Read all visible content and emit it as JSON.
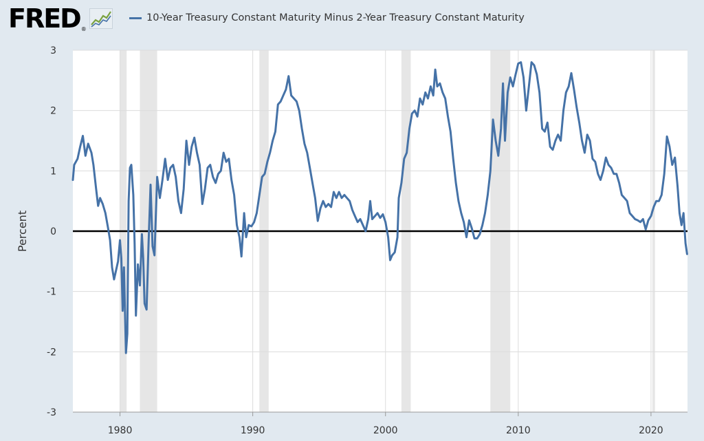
{
  "header": {
    "logo_text": "FRED",
    "logo_reg": "®",
    "logo_icon": "sparkline-chart-icon"
  },
  "legend": {
    "label": "10-Year Treasury Constant Maturity Minus 2-Year Treasury Constant Maturity",
    "color": "#4572a7"
  },
  "chart_data": {
    "type": "line",
    "title": "",
    "xlabel": "",
    "ylabel": "Percent",
    "xlim": [
      1976.45,
      2022.75
    ],
    "ylim": [
      -3,
      3
    ],
    "x_ticks": [
      1980,
      1990,
      2000,
      2010,
      2020
    ],
    "x_tick_labels": [
      "1980",
      "1990",
      "2000",
      "2010",
      "2020"
    ],
    "y_ticks": [
      -3,
      -2,
      -1,
      0,
      1,
      2,
      3
    ],
    "y_tick_labels": [
      "-3",
      "-2",
      "-1",
      "0",
      "1",
      "2",
      "3"
    ],
    "grid": true,
    "zero_line": true,
    "legend_position": "top",
    "recessions": [
      [
        1980.0,
        1980.5
      ],
      [
        1981.5,
        1982.8
      ],
      [
        1990.5,
        1991.2
      ],
      [
        2001.2,
        2001.9
      ],
      [
        2007.9,
        2009.4
      ],
      [
        2020.1,
        2020.3
      ]
    ],
    "series": [
      {
        "name": "10-Year Treasury Constant Maturity Minus 2-Year Treasury Constant Maturity",
        "color": "#4572a7",
        "points": [
          [
            1976.45,
            0.85
          ],
          [
            1976.55,
            1.1
          ],
          [
            1976.8,
            1.2
          ],
          [
            1977.0,
            1.4
          ],
          [
            1977.2,
            1.58
          ],
          [
            1977.4,
            1.25
          ],
          [
            1977.6,
            1.45
          ],
          [
            1977.85,
            1.3
          ],
          [
            1978.0,
            1.1
          ],
          [
            1978.2,
            0.7
          ],
          [
            1978.35,
            0.42
          ],
          [
            1978.5,
            0.55
          ],
          [
            1978.7,
            0.45
          ],
          [
            1978.9,
            0.3
          ],
          [
            1979.1,
            0.05
          ],
          [
            1979.25,
            -0.15
          ],
          [
            1979.4,
            -0.6
          ],
          [
            1979.55,
            -0.8
          ],
          [
            1979.7,
            -0.65
          ],
          [
            1979.85,
            -0.5
          ],
          [
            1980.0,
            -0.15
          ],
          [
            1980.1,
            -0.45
          ],
          [
            1980.2,
            -1.32
          ],
          [
            1980.3,
            -0.6
          ],
          [
            1980.45,
            -2.02
          ],
          [
            1980.55,
            -1.7
          ],
          [
            1980.65,
            0.5
          ],
          [
            1980.75,
            1.05
          ],
          [
            1980.85,
            1.1
          ],
          [
            1981.0,
            0.6
          ],
          [
            1981.1,
            -0.2
          ],
          [
            1981.2,
            -1.4
          ],
          [
            1981.35,
            -0.55
          ],
          [
            1981.5,
            -0.9
          ],
          [
            1981.65,
            -0.05
          ],
          [
            1981.75,
            -0.45
          ],
          [
            1981.85,
            -1.2
          ],
          [
            1982.0,
            -1.3
          ],
          [
            1982.15,
            -0.2
          ],
          [
            1982.3,
            0.77
          ],
          [
            1982.45,
            -0.25
          ],
          [
            1982.6,
            -0.4
          ],
          [
            1982.8,
            0.9
          ],
          [
            1983.0,
            0.55
          ],
          [
            1983.2,
            0.85
          ],
          [
            1983.4,
            1.2
          ],
          [
            1983.6,
            0.85
          ],
          [
            1983.8,
            1.05
          ],
          [
            1984.0,
            1.1
          ],
          [
            1984.2,
            0.9
          ],
          [
            1984.4,
            0.5
          ],
          [
            1984.6,
            0.3
          ],
          [
            1984.8,
            0.7
          ],
          [
            1985.0,
            1.5
          ],
          [
            1985.2,
            1.1
          ],
          [
            1985.4,
            1.4
          ],
          [
            1985.6,
            1.55
          ],
          [
            1985.8,
            1.3
          ],
          [
            1986.0,
            1.1
          ],
          [
            1986.2,
            0.45
          ],
          [
            1986.4,
            0.7
          ],
          [
            1986.6,
            1.05
          ],
          [
            1986.8,
            1.1
          ],
          [
            1987.0,
            0.9
          ],
          [
            1987.2,
            0.8
          ],
          [
            1987.4,
            0.95
          ],
          [
            1987.6,
            1.0
          ],
          [
            1987.8,
            1.3
          ],
          [
            1988.0,
            1.15
          ],
          [
            1988.2,
            1.2
          ],
          [
            1988.4,
            0.85
          ],
          [
            1988.6,
            0.6
          ],
          [
            1988.8,
            0.1
          ],
          [
            1989.0,
            -0.1
          ],
          [
            1989.15,
            -0.42
          ],
          [
            1989.35,
            0.3
          ],
          [
            1989.5,
            -0.1
          ],
          [
            1989.7,
            0.1
          ],
          [
            1989.9,
            0.08
          ],
          [
            1990.1,
            0.15
          ],
          [
            1990.3,
            0.3
          ],
          [
            1990.5,
            0.6
          ],
          [
            1990.7,
            0.9
          ],
          [
            1990.9,
            0.95
          ],
          [
            1991.1,
            1.15
          ],
          [
            1991.3,
            1.3
          ],
          [
            1991.5,
            1.5
          ],
          [
            1991.7,
            1.65
          ],
          [
            1991.9,
            2.1
          ],
          [
            1992.1,
            2.15
          ],
          [
            1992.3,
            2.25
          ],
          [
            1992.5,
            2.35
          ],
          [
            1992.7,
            2.57
          ],
          [
            1992.9,
            2.25
          ],
          [
            1993.1,
            2.2
          ],
          [
            1993.3,
            2.15
          ],
          [
            1993.5,
            2.0
          ],
          [
            1993.7,
            1.7
          ],
          [
            1993.9,
            1.45
          ],
          [
            1994.1,
            1.3
          ],
          [
            1994.3,
            1.05
          ],
          [
            1994.5,
            0.8
          ],
          [
            1994.7,
            0.55
          ],
          [
            1994.9,
            0.17
          ],
          [
            1995.1,
            0.38
          ],
          [
            1995.3,
            0.5
          ],
          [
            1995.5,
            0.4
          ],
          [
            1995.7,
            0.45
          ],
          [
            1995.9,
            0.4
          ],
          [
            1996.1,
            0.65
          ],
          [
            1996.3,
            0.55
          ],
          [
            1996.5,
            0.65
          ],
          [
            1996.7,
            0.55
          ],
          [
            1996.9,
            0.6
          ],
          [
            1997.1,
            0.55
          ],
          [
            1997.3,
            0.5
          ],
          [
            1997.5,
            0.35
          ],
          [
            1997.7,
            0.25
          ],
          [
            1997.9,
            0.15
          ],
          [
            1998.1,
            0.2
          ],
          [
            1998.3,
            0.1
          ],
          [
            1998.5,
            0.0
          ],
          [
            1998.7,
            0.2
          ],
          [
            1998.85,
            0.5
          ],
          [
            1999.0,
            0.2
          ],
          [
            1999.2,
            0.25
          ],
          [
            1999.4,
            0.3
          ],
          [
            1999.6,
            0.22
          ],
          [
            1999.8,
            0.28
          ],
          [
            2000.0,
            0.15
          ],
          [
            2000.2,
            -0.1
          ],
          [
            2000.35,
            -0.48
          ],
          [
            2000.5,
            -0.4
          ],
          [
            2000.7,
            -0.35
          ],
          [
            2000.9,
            -0.1
          ],
          [
            2001.0,
            0.55
          ],
          [
            2001.2,
            0.8
          ],
          [
            2001.4,
            1.2
          ],
          [
            2001.6,
            1.3
          ],
          [
            2001.8,
            1.7
          ],
          [
            2002.0,
            1.95
          ],
          [
            2002.2,
            2.0
          ],
          [
            2002.4,
            1.9
          ],
          [
            2002.6,
            2.2
          ],
          [
            2002.8,
            2.1
          ],
          [
            2003.0,
            2.3
          ],
          [
            2003.2,
            2.2
          ],
          [
            2003.4,
            2.4
          ],
          [
            2003.6,
            2.25
          ],
          [
            2003.75,
            2.68
          ],
          [
            2003.9,
            2.4
          ],
          [
            2004.1,
            2.45
          ],
          [
            2004.3,
            2.3
          ],
          [
            2004.5,
            2.2
          ],
          [
            2004.7,
            1.9
          ],
          [
            2004.9,
            1.65
          ],
          [
            2005.1,
            1.2
          ],
          [
            2005.3,
            0.8
          ],
          [
            2005.5,
            0.5
          ],
          [
            2005.7,
            0.3
          ],
          [
            2005.9,
            0.15
          ],
          [
            2006.1,
            -0.1
          ],
          [
            2006.3,
            0.18
          ],
          [
            2006.5,
            0.05
          ],
          [
            2006.7,
            -0.12
          ],
          [
            2006.9,
            -0.12
          ],
          [
            2007.1,
            -0.05
          ],
          [
            2007.3,
            0.1
          ],
          [
            2007.5,
            0.3
          ],
          [
            2007.7,
            0.6
          ],
          [
            2007.9,
            1.0
          ],
          [
            2008.1,
            1.85
          ],
          [
            2008.3,
            1.5
          ],
          [
            2008.5,
            1.25
          ],
          [
            2008.7,
            1.7
          ],
          [
            2008.85,
            2.45
          ],
          [
            2009.0,
            1.5
          ],
          [
            2009.2,
            2.3
          ],
          [
            2009.4,
            2.55
          ],
          [
            2009.6,
            2.4
          ],
          [
            2009.8,
            2.6
          ],
          [
            2010.0,
            2.78
          ],
          [
            2010.2,
            2.8
          ],
          [
            2010.4,
            2.55
          ],
          [
            2010.6,
            2.0
          ],
          [
            2010.8,
            2.4
          ],
          [
            2011.0,
            2.8
          ],
          [
            2011.2,
            2.75
          ],
          [
            2011.4,
            2.6
          ],
          [
            2011.6,
            2.3
          ],
          [
            2011.8,
            1.7
          ],
          [
            2012.0,
            1.65
          ],
          [
            2012.2,
            1.8
          ],
          [
            2012.4,
            1.4
          ],
          [
            2012.6,
            1.35
          ],
          [
            2012.8,
            1.5
          ],
          [
            2013.0,
            1.6
          ],
          [
            2013.2,
            1.5
          ],
          [
            2013.4,
            2.0
          ],
          [
            2013.6,
            2.3
          ],
          [
            2013.8,
            2.4
          ],
          [
            2014.0,
            2.62
          ],
          [
            2014.2,
            2.35
          ],
          [
            2014.4,
            2.05
          ],
          [
            2014.6,
            1.8
          ],
          [
            2014.8,
            1.5
          ],
          [
            2015.0,
            1.3
          ],
          [
            2015.2,
            1.6
          ],
          [
            2015.4,
            1.5
          ],
          [
            2015.6,
            1.2
          ],
          [
            2015.8,
            1.15
          ],
          [
            2016.0,
            0.95
          ],
          [
            2016.2,
            0.85
          ],
          [
            2016.4,
            1.0
          ],
          [
            2016.6,
            1.22
          ],
          [
            2016.8,
            1.1
          ],
          [
            2017.0,
            1.05
          ],
          [
            2017.2,
            0.95
          ],
          [
            2017.4,
            0.95
          ],
          [
            2017.6,
            0.8
          ],
          [
            2017.8,
            0.6
          ],
          [
            2018.0,
            0.55
          ],
          [
            2018.2,
            0.5
          ],
          [
            2018.4,
            0.3
          ],
          [
            2018.6,
            0.25
          ],
          [
            2018.8,
            0.2
          ],
          [
            2019.0,
            0.18
          ],
          [
            2019.2,
            0.15
          ],
          [
            2019.4,
            0.2
          ],
          [
            2019.6,
            0.03
          ],
          [
            2019.8,
            0.18
          ],
          [
            2020.0,
            0.25
          ],
          [
            2020.2,
            0.4
          ],
          [
            2020.4,
            0.5
          ],
          [
            2020.6,
            0.5
          ],
          [
            2020.8,
            0.6
          ],
          [
            2021.0,
            0.95
          ],
          [
            2021.2,
            1.57
          ],
          [
            2021.4,
            1.4
          ],
          [
            2021.6,
            1.1
          ],
          [
            2021.8,
            1.22
          ],
          [
            2022.0,
            0.75
          ],
          [
            2022.15,
            0.3
          ],
          [
            2022.3,
            0.1
          ],
          [
            2022.45,
            0.3
          ],
          [
            2022.6,
            -0.2
          ],
          [
            2022.72,
            -0.38
          ]
        ]
      }
    ]
  }
}
